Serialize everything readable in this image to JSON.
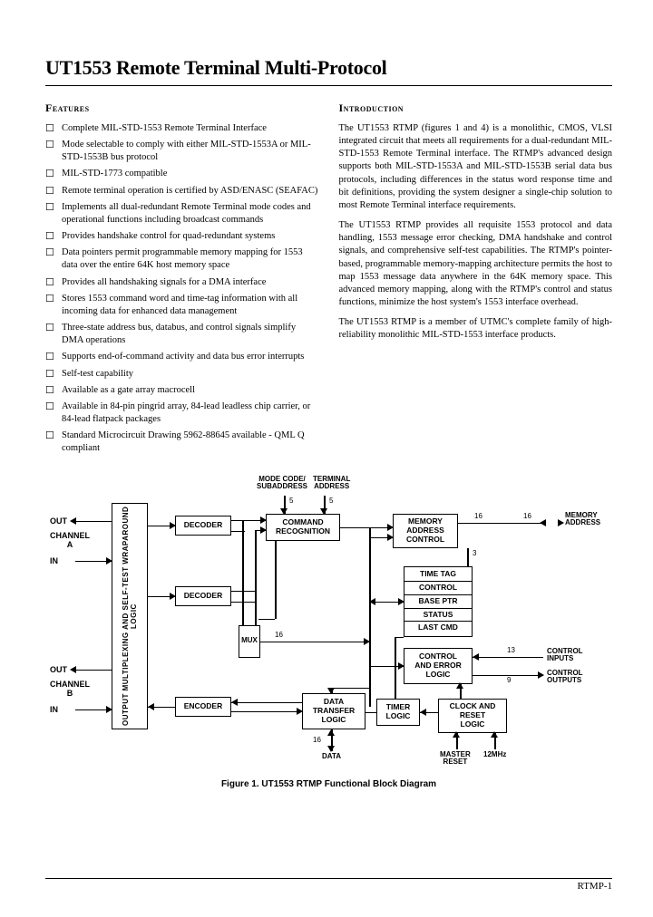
{
  "doc": {
    "title": "UT1553 Remote Terminal Multi-Protocol",
    "features_heading": "Features",
    "intro_heading": "Introduction",
    "features": [
      "Complete MIL-STD-1553 Remote Terminal Interface",
      "Mode selectable to comply with either MIL-STD-1553A or MIL-STD-1553B bus protocol",
      "MIL-STD-1773 compatible",
      "Remote terminal operation is certified by ASD/ENASC (SEAFAC)",
      "Implements all dual-redundant Remote Terminal mode codes and operational functions including broadcast commands",
      "Provides handshake control for quad-redundant systems",
      "Data pointers permit programmable memory mapping for 1553 data over the entire 64K host memory space",
      "Provides all handshaking signals for a DMA interface",
      "Stores 1553 command word and time-tag information with all incoming data for enhanced data management",
      "Three-state address bus, databus, and control signals simplify DMA operations",
      "Supports end-of-command activity and data bus error interrupts",
      "Self-test capability",
      "Available as a gate array macrocell",
      "Available in 84-pin pingrid array, 84-lead leadless chip carrier, or 84-lead flatpack packages",
      "Standard Microcircuit Drawing 5962-88645 available - QML Q compliant"
    ],
    "intro": [
      "The UT1553 RTMP (figures 1 and 4) is a monolithic, CMOS, VLSI integrated circuit that meets all requirements for a dual-redundant MIL-STD-1553 Remote Terminal interface. The RTMP's advanced design supports both MIL-STD-1553A and MIL-STD-1553B serial data bus protocols, including differences in the status word response time and bit definitions, providing the system designer a single-chip solution to most Remote Terminal interface requirements.",
      "The UT1553 RTMP provides all requisite 1553 protocol and data handling, 1553 message error checking, DMA handshake and control signals, and comprehensive self-test capabilities. The RTMP's pointer-based, programmable memory-mapping architecture permits the host to map 1553 message data anywhere in the 64K memory space. This advanced memory mapping, along with the RTMP's control and status functions, minimize the host system's 1553 interface overhead.",
      "The UT1553 RTMP is a member of UTMC's complete family of high-reliability monolithic MIL-STD-1553 interface products."
    ],
    "caption": "Figure 1. UT1553 RTMP Functional Block Diagram",
    "footer": "RTMP-1"
  },
  "diagram": {
    "labels": {
      "out": "OUT",
      "in": "IN",
      "ch_a": "CHANNEL\nA",
      "ch_b": "CHANNEL\nB",
      "modecode": "MODE CODE/\nSUBADDRESS",
      "termaddr": "TERMINAL\nADDRESS",
      "data": "DATA",
      "master_reset": "MASTER\nRESET",
      "mhz": "12MHz",
      "ctrl_in": "CONTROL\nINPUTS",
      "ctrl_out": "CONTROL\nOUTPUTS",
      "mem_addr": "MEMORY\nADDRESS",
      "n5a": "5",
      "n5b": "5",
      "n16a": "16",
      "n16b": "16",
      "n16c": "16",
      "n16d": "16",
      "n3": "3",
      "n13": "13",
      "n9": "9"
    },
    "blocks": {
      "outmux": "OUTPUT MULTIPLEXING AND\nSELF-TEST WRAPAROUND LOGIC",
      "dec1": "DECODER",
      "dec2": "DECODER",
      "enc": "ENCODER",
      "cmd": "COMMAND\nRECOGNITION",
      "memaddr": "MEMORY\nADDRESS\nCONTROL",
      "timetag": "TIME TAG",
      "ctrl": "CONTROL",
      "baseptr": "BASE PTR",
      "status": "STATUS",
      "lastcmd": "LAST CMD",
      "errlogic": "CONTROL\nAND ERROR\nLOGIC",
      "dtl": "DATA\nTRANSFER\nLOGIC",
      "timer": "TIMER\nLOGIC",
      "clkrst": "CLOCK AND\nRESET\nLOGIC",
      "mux": "MUX"
    }
  }
}
